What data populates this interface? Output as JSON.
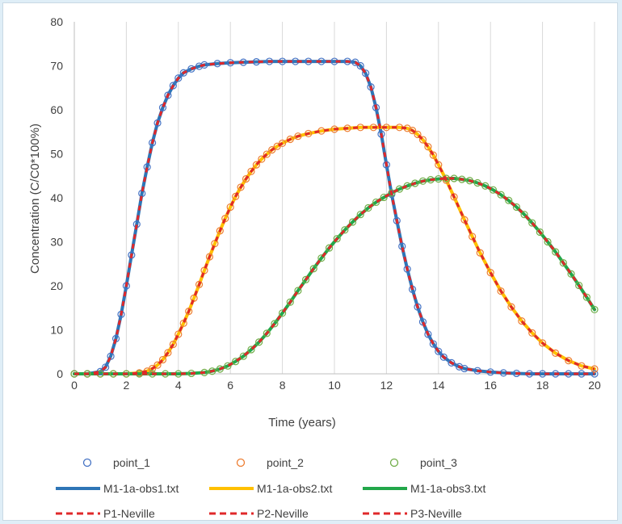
{
  "chart_data": {
    "type": "scatter",
    "title": "",
    "xlabel": "Time (years)",
    "ylabel": "Concentration (C/C0*100%)",
    "xlim": [
      0,
      20
    ],
    "ylim": [
      0,
      80
    ],
    "xticks": [
      0,
      2,
      4,
      6,
      8,
      10,
      12,
      14,
      16,
      18,
      20
    ],
    "yticks": [
      0,
      10,
      20,
      30,
      40,
      50,
      60,
      70,
      80
    ],
    "grid": "vertical",
    "legend_position": "bottom",
    "series": [
      {
        "name": "point_1",
        "kind": "markers",
        "marker": "open-circle",
        "color": "#4472c4",
        "x": [
          0,
          0.5,
          1,
          1.2,
          1.4,
          1.6,
          1.8,
          2,
          2.2,
          2.4,
          2.6,
          2.8,
          3,
          3.2,
          3.4,
          3.6,
          3.8,
          4,
          4.2,
          4.5,
          4.8,
          5,
          5.5,
          6,
          6.5,
          7,
          7.5,
          8,
          8.5,
          9,
          9.5,
          10,
          10.5,
          10.8,
          11,
          11.2,
          11.4,
          11.6,
          11.8,
          12,
          12.2,
          12.4,
          12.6,
          12.8,
          13,
          13.2,
          13.4,
          13.6,
          13.8,
          14,
          14.2,
          14.5,
          14.8,
          15,
          15.5,
          16,
          16.5,
          17,
          17.5,
          18,
          18.5,
          19,
          19.5,
          20
        ],
        "y": [
          0,
          0,
          0.5,
          1.5,
          4,
          8,
          13.5,
          20,
          27,
          34,
          41,
          47,
          52.5,
          57,
          60.5,
          63.3,
          65.5,
          67.2,
          68.4,
          69.3,
          69.9,
          70.2,
          70.5,
          70.7,
          70.8,
          70.9,
          71,
          71,
          71,
          71,
          71,
          71,
          71,
          70.8,
          70,
          68.3,
          65.2,
          60.5,
          54.5,
          47.5,
          40.8,
          34.8,
          29,
          23.8,
          19.2,
          15.2,
          11.8,
          9,
          6.8,
          5.1,
          3.8,
          2.5,
          1.6,
          1.2,
          0.7,
          0.4,
          0.2,
          0.1,
          0,
          0,
          0,
          0,
          0,
          0
        ]
      },
      {
        "name": "point_2",
        "kind": "markers",
        "marker": "open-circle",
        "color": "#ed7d31",
        "x": [
          0,
          0.5,
          1,
          1.5,
          2,
          2.5,
          2.8,
          3,
          3.2,
          3.4,
          3.6,
          3.8,
          4,
          4.2,
          4.4,
          4.6,
          4.8,
          5,
          5.2,
          5.4,
          5.6,
          5.8,
          6,
          6.2,
          6.4,
          6.6,
          6.8,
          7,
          7.2,
          7.4,
          7.6,
          7.8,
          8,
          8.3,
          8.6,
          9,
          9.5,
          10,
          10.5,
          11,
          11.5,
          12,
          12.5,
          12.8,
          13,
          13.2,
          13.4,
          13.6,
          13.8,
          14,
          14.3,
          14.6,
          15,
          15.3,
          15.6,
          16,
          16.4,
          16.8,
          17.2,
          17.6,
          18,
          18.5,
          19,
          19.5,
          20
        ],
        "y": [
          0,
          0,
          0,
          0,
          0,
          0.2,
          0.6,
          1.2,
          2,
          3.2,
          4.8,
          6.7,
          9,
          11.5,
          14.2,
          17.2,
          20.3,
          23.5,
          26.6,
          29.6,
          32.5,
          35.3,
          37.9,
          40.3,
          42.4,
          44.3,
          46,
          47.5,
          48.8,
          49.9,
          50.9,
          51.7,
          52.4,
          53.3,
          54,
          54.6,
          55.2,
          55.6,
          55.8,
          56,
          56,
          56,
          56,
          55.8,
          55.3,
          54.4,
          53.2,
          51.6,
          49.7,
          47.5,
          44,
          40.2,
          35,
          31.2,
          27.5,
          23,
          18.8,
          15.2,
          12,
          9.3,
          7,
          4.7,
          3,
          1.8,
          1.1
        ]
      },
      {
        "name": "point_3",
        "kind": "markers",
        "marker": "open-circle",
        "color": "#70ad47",
        "x": [
          0,
          0.5,
          1,
          1.5,
          2,
          2.5,
          3,
          3.5,
          4,
          4.5,
          5,
          5.3,
          5.6,
          5.9,
          6.2,
          6.5,
          6.8,
          7.1,
          7.4,
          7.7,
          8,
          8.3,
          8.6,
          8.9,
          9.2,
          9.5,
          9.8,
          10.1,
          10.4,
          10.7,
          11,
          11.3,
          11.6,
          11.9,
          12.2,
          12.5,
          12.8,
          13.1,
          13.4,
          13.7,
          14,
          14.3,
          14.6,
          14.9,
          15.2,
          15.5,
          15.8,
          16.1,
          16.4,
          16.7,
          17,
          17.3,
          17.6,
          17.9,
          18.2,
          18.5,
          18.8,
          19.1,
          19.4,
          19.7,
          20
        ],
        "y": [
          0,
          0,
          0,
          0,
          0,
          0,
          0,
          0,
          0,
          0.1,
          0.3,
          0.6,
          1.1,
          1.8,
          2.8,
          4,
          5.5,
          7.2,
          9.2,
          11.4,
          13.8,
          16.3,
          18.9,
          21.4,
          23.9,
          26.3,
          28.6,
          30.7,
          32.7,
          34.5,
          36.2,
          37.7,
          39,
          40.1,
          41.1,
          42,
          42.7,
          43.3,
          43.8,
          44.1,
          44.3,
          44.4,
          44.4,
          44.2,
          43.9,
          43.4,
          42.7,
          41.8,
          40.7,
          39.4,
          37.9,
          36.2,
          34.3,
          32.2,
          30,
          27.7,
          25.2,
          22.7,
          20.1,
          17.4,
          14.6
        ]
      },
      {
        "name": "M1-1a-obs1.txt",
        "kind": "line",
        "style": "solid",
        "width": 4,
        "color": "#2e75b6",
        "ref": "point_1"
      },
      {
        "name": "M1-1a-obs2.txt",
        "kind": "line",
        "style": "solid",
        "width": 4,
        "color": "#ffc000",
        "ref": "point_2"
      },
      {
        "name": "M1-1a-obs3.txt",
        "kind": "line",
        "style": "solid",
        "width": 4,
        "color": "#22a74a",
        "ref": "point_3"
      },
      {
        "name": "P1-Neville",
        "kind": "line",
        "style": "dashed",
        "width": 3,
        "color": "#e0282a",
        "ref": "point_1"
      },
      {
        "name": "P2-Neville",
        "kind": "line",
        "style": "dashed",
        "width": 3,
        "color": "#e0282a",
        "ref": "point_2"
      },
      {
        "name": "P3-Neville",
        "kind": "line",
        "style": "dashed",
        "width": 3,
        "color": "#e0282a",
        "ref": "point_3"
      }
    ]
  }
}
